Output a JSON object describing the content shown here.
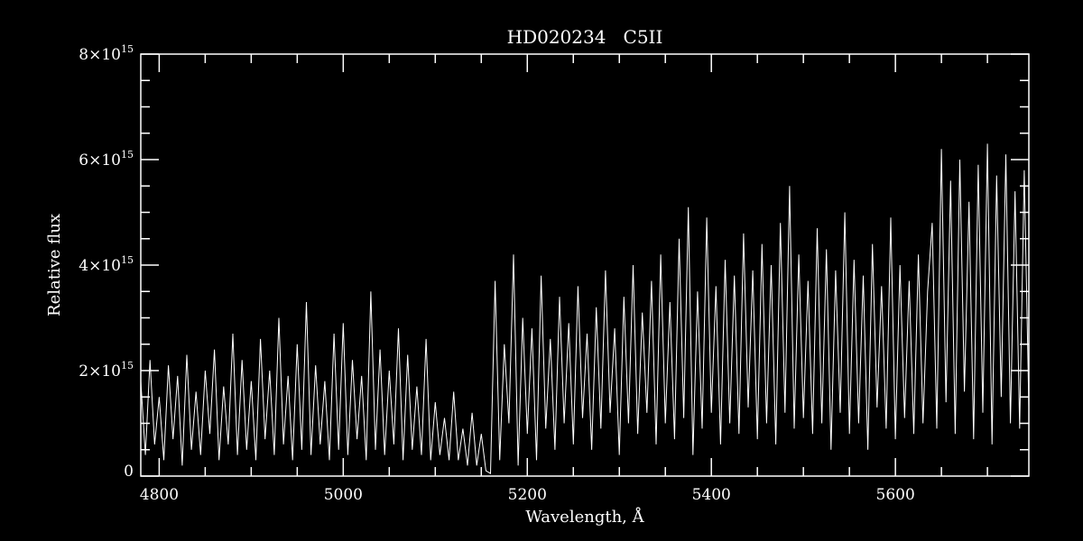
{
  "chart_data": {
    "type": "line",
    "title": "HD020234   C5II",
    "xlabel": "Wavelength, Å",
    "ylabel": "Relative flux",
    "xlim": [
      4780,
      5745
    ],
    "ylim": [
      0,
      8000000000000000.0
    ],
    "x_ticks": [
      4800,
      5000,
      5200,
      5400,
      5600
    ],
    "x_tick_labels": [
      "4800",
      "5000",
      "5200",
      "5400",
      "5600"
    ],
    "x_minor_step": 50,
    "y_ticks": [
      0,
      2000000000000000.0,
      4000000000000000.0,
      6000000000000000.0,
      8000000000000000.0
    ],
    "y_tick_labels": [
      {
        "mantissa": "0",
        "exp": ""
      },
      {
        "mantissa": "2×10",
        "exp": "15"
      },
      {
        "mantissa": "4×10",
        "exp": "15"
      },
      {
        "mantissa": "6×10",
        "exp": "15"
      },
      {
        "mantissa": "8×10",
        "exp": "15"
      }
    ],
    "y_minor_step": 500000000000000.0,
    "grid": false,
    "colors": {
      "background": "#000000",
      "line": "#ffffff",
      "axes": "#ffffff"
    },
    "series": [
      {
        "x_start": 4780,
        "x_end": 5745,
        "y": [
          1800000000000000.0,
          400000000000000.0,
          2200000000000000.0,
          600000000000000.0,
          1500000000000000.0,
          300000000000000.0,
          2100000000000000.0,
          700000000000000.0,
          1900000000000000.0,
          200000000000000.0,
          2300000000000000.0,
          500000000000000.0,
          1600000000000000.0,
          400000000000000.0,
          2000000000000000.0,
          800000000000000.0,
          2400000000000000.0,
          300000000000000.0,
          1700000000000000.0,
          600000000000000.0,
          2700000000000000.0,
          400000000000000.0,
          2200000000000000.0,
          500000000000000.0,
          1800000000000000.0,
          300000000000000.0,
          2600000000000000.0,
          700000000000000.0,
          2000000000000000.0,
          400000000000000.0,
          3000000000000000.0,
          600000000000000.0,
          1900000000000000.0,
          300000000000000.0,
          2500000000000000.0,
          500000000000000.0,
          3300000000000000.0,
          400000000000000.0,
          2100000000000000.0,
          600000000000000.0,
          1800000000000000.0,
          300000000000000.0,
          2700000000000000.0,
          500000000000000.0,
          2900000000000000.0,
          400000000000000.0,
          2200000000000000.0,
          700000000000000.0,
          1900000000000000.0,
          300000000000000.0,
          3500000000000000.0,
          500000000000000.0,
          2400000000000000.0,
          400000000000000.0,
          2000000000000000.0,
          600000000000000.0,
          2800000000000000.0,
          300000000000000.0,
          2300000000000000.0,
          500000000000000.0,
          1700000000000000.0,
          400000000000000.0,
          2600000000000000.0,
          300000000000000.0,
          1400000000000000.0,
          400000000000000.0,
          1100000000000000.0,
          300000000000000.0,
          1600000000000000.0,
          300000000000000.0,
          900000000000000.0,
          200000000000000.0,
          1200000000000000.0,
          200000000000000.0,
          800000000000000.0,
          100000000000000.0,
          50000000000000.0,
          3700000000000000.0,
          300000000000000.0,
          2500000000000000.0,
          1000000000000000.0,
          4200000000000000.0,
          200000000000000.0,
          3000000000000000.0,
          800000000000000.0,
          2800000000000000.0,
          300000000000000.0,
          3800000000000000.0,
          900000000000000.0,
          2600000000000000.0,
          500000000000000.0,
          3400000000000000.0,
          1000000000000000.0,
          2900000000000000.0,
          600000000000000.0,
          3600000000000000.0,
          1100000000000000.0,
          2700000000000000.0,
          500000000000000.0,
          3200000000000000.0,
          900000000000000.0,
          3900000000000000.0,
          1200000000000000.0,
          2800000000000000.0,
          400000000000000.0,
          3400000000000000.0,
          1000000000000000.0,
          4000000000000000.0,
          800000000000000.0,
          3100000000000000.0,
          1200000000000000.0,
          3700000000000000.0,
          600000000000000.0,
          4200000000000000.0,
          1000000000000000.0,
          3300000000000000.0,
          700000000000000.0,
          4500000000000000.0,
          1100000000000000.0,
          5100000000000000.0,
          400000000000000.0,
          3500000000000000.0,
          900000000000000.0,
          4900000000000000.0,
          1200000000000000.0,
          3600000000000000.0,
          600000000000000.0,
          4100000000000000.0,
          1000000000000000.0,
          3800000000000000.0,
          800000000000000.0,
          4600000000000000.0,
          1300000000000000.0,
          3900000000000000.0,
          700000000000000.0,
          4400000000000000.0,
          1000000000000000.0,
          4000000000000000.0,
          600000000000000.0,
          4800000000000000.0,
          1200000000000000.0,
          5500000000000000.0,
          900000000000000.0,
          4200000000000000.0,
          1100000000000000.0,
          3700000000000000.0,
          800000000000000.0,
          4700000000000000.0,
          1000000000000000.0,
          4300000000000000.0,
          500000000000000.0,
          3900000000000000.0,
          1200000000000000.0,
          5000000000000000.0,
          800000000000000.0,
          4100000000000000.0,
          1000000000000000.0,
          3800000000000000.0,
          500000000000000.0,
          4400000000000000.0,
          1300000000000000.0,
          3600000000000000.0,
          900000000000000.0,
          4900000000000000.0,
          700000000000000.0,
          4000000000000000.0,
          1100000000000000.0,
          3700000000000000.0,
          800000000000000.0,
          4200000000000000.0,
          1000000000000000.0,
          3500000000000000.0,
          4800000000000000.0,
          900000000000000.0,
          6200000000000000.0,
          1400000000000000.0,
          5600000000000000.0,
          800000000000000.0,
          6000000000000000.0,
          1600000000000000.0,
          5200000000000000.0,
          700000000000000.0,
          5900000000000000.0,
          1200000000000000.0,
          6300000000000000.0,
          600000000000000.0,
          5700000000000000.0,
          1500000000000000.0,
          6100000000000000.0,
          1000000000000000.0,
          5400000000000000.0,
          900000000000000.0,
          5800000000000000.0,
          1300000000000000.0
        ]
      }
    ]
  }
}
